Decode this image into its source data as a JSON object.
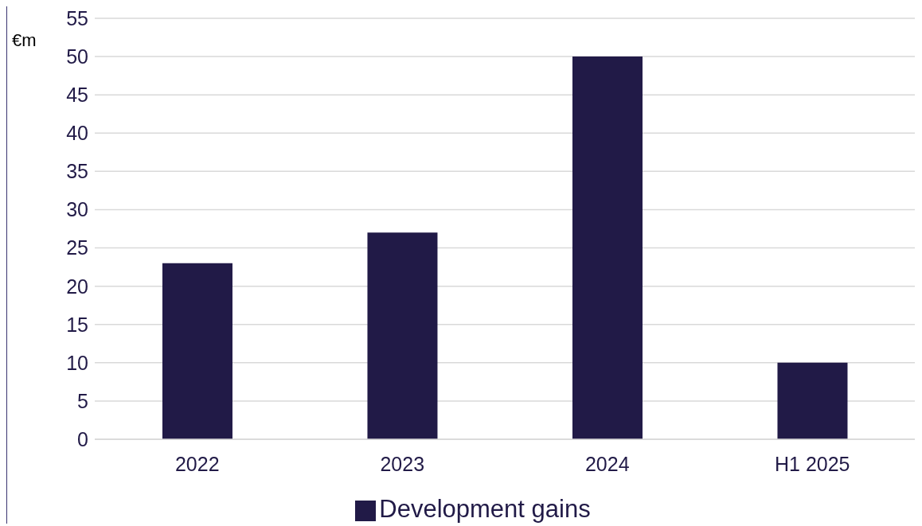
{
  "chart_data": {
    "type": "bar",
    "ylabel": "€m",
    "categories": [
      "2022",
      "2023",
      "2024",
      "H1 2025"
    ],
    "series": [
      {
        "name": "Development gains",
        "color": "#211a47",
        "values": [
          23,
          27,
          50,
          10
        ]
      }
    ],
    "ylim": [
      0,
      55
    ],
    "yticks": [
      0,
      5,
      10,
      15,
      20,
      25,
      30,
      35,
      40,
      45,
      50,
      55
    ],
    "grid": "y",
    "legend": "bottom"
  }
}
